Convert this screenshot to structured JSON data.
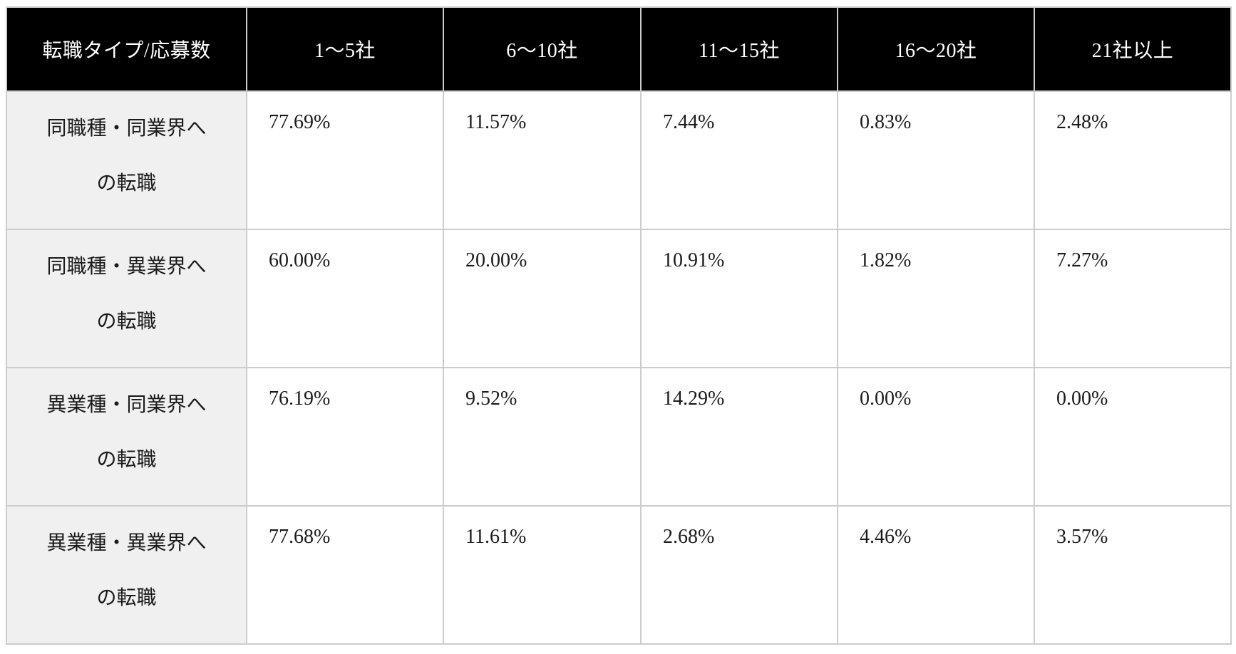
{
  "table": {
    "columns": [
      "転職タイプ/応募数",
      "1〜5社",
      "6〜10社",
      "11〜15社",
      "16〜20社",
      "21社以上"
    ],
    "rows": [
      {
        "label": "同職種・同業界への転職",
        "values": [
          "77.69%",
          "11.57%",
          "7.44%",
          "0.83%",
          "2.48%"
        ]
      },
      {
        "label": "同職種・異業界への転職",
        "values": [
          "60.00%",
          "20.00%",
          "10.91%",
          "1.82%",
          "7.27%"
        ]
      },
      {
        "label": "異業種・同業界への転職",
        "values": [
          "76.19%",
          "9.52%",
          "14.29%",
          "0.00%",
          "0.00%"
        ]
      },
      {
        "label": "異業種・異業界への転職",
        "values": [
          "77.68%",
          "11.61%",
          "2.68%",
          "4.46%",
          "3.57%"
        ]
      }
    ],
    "colors": {
      "header_bg": "#000000",
      "header_text": "#ffffff",
      "label_bg": "#f0f0f0",
      "cell_bg": "#ffffff",
      "border": "#cccccc",
      "text": "#1a1a1a"
    }
  },
  "chart_data": {
    "type": "table",
    "columns": [
      "転職タイプ/応募数",
      "1〜5社",
      "6〜10社",
      "11〜15社",
      "16〜20社",
      "21社以上"
    ],
    "unit": "%",
    "series": [
      {
        "name": "同職種・同業界への転職",
        "values": [
          77.69,
          11.57,
          7.44,
          0.83,
          2.48
        ]
      },
      {
        "name": "同職種・異業界への転職",
        "values": [
          60.0,
          20.0,
          10.91,
          1.82,
          7.27
        ]
      },
      {
        "name": "異業種・同業界への転職",
        "values": [
          76.19,
          9.52,
          14.29,
          0.0,
          0.0
        ]
      },
      {
        "name": "異業種・異業界への転職",
        "values": [
          77.68,
          11.61,
          2.68,
          4.46,
          3.57
        ]
      }
    ]
  }
}
